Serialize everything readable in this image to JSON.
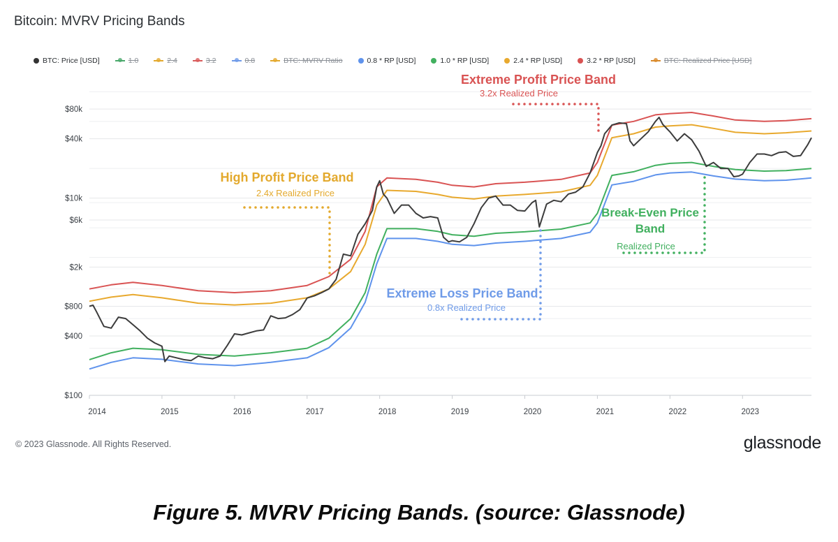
{
  "header": {
    "title": "Bitcoin: MVRV Pricing Bands"
  },
  "legend": [
    {
      "label": "BTC: Price [USD]",
      "color": "#333333",
      "kind": "dot",
      "hidden": false
    },
    {
      "label": "1.0",
      "color": "#4aa96c",
      "kind": "dash",
      "hidden": true
    },
    {
      "label": "2.4",
      "color": "#e3a92d",
      "kind": "dash",
      "hidden": true
    },
    {
      "label": "3.2",
      "color": "#d95b5b",
      "kind": "dash",
      "hidden": true
    },
    {
      "label": "0.8",
      "color": "#6f9be8",
      "kind": "dash",
      "hidden": true
    },
    {
      "label": "BTC: MVRV Ratio",
      "color": "#e3a92d",
      "kind": "dash",
      "hidden": true
    },
    {
      "label": "0.8 * RP [USD]",
      "color": "#5f93ec",
      "kind": "dot",
      "hidden": false
    },
    {
      "label": "1.0 * RP [USD]",
      "color": "#41b05f",
      "kind": "dot",
      "hidden": false
    },
    {
      "label": "2.4 * RP [USD]",
      "color": "#e8a92e",
      "kind": "dot",
      "hidden": false
    },
    {
      "label": "3.2 * RP [USD]",
      "color": "#d95353",
      "kind": "dot",
      "hidden": false
    },
    {
      "label": "BTC: Realized Price [USD]",
      "color": "#d98a2b",
      "kind": "dash",
      "hidden": true
    }
  ],
  "annotations": [
    {
      "id": "extreme-profit",
      "title": "Extreme Profit Price Band",
      "subtitle": "3.2x Realized Price",
      "color": "#d95353"
    },
    {
      "id": "high-profit",
      "title": "High Profit Price Band",
      "subtitle": "2.4x Realized Price",
      "color": "#e3a92d"
    },
    {
      "id": "break-even",
      "title": "Break-Even Price Band",
      "subtitle": "Realized Price",
      "color": "#41b05f"
    },
    {
      "id": "extreme-loss",
      "title": "Extreme Loss Price Band",
      "subtitle": "0.8x Realized Price",
      "color": "#6f9be8"
    }
  ],
  "footer": {
    "copyright": "© 2023 Glassnode. All Rights Reserved.",
    "brand": "glassnode"
  },
  "caption": "Figure 5. MVRV Pricing Bands. (source: Glassnode)",
  "chart_data": {
    "type": "line",
    "title": "Bitcoin: MVRV Pricing Bands",
    "y_scale": "log",
    "ylim": [
      100,
      200000
    ],
    "y_ticks": [
      {
        "value": 100,
        "label": "$100"
      },
      {
        "value": 400,
        "label": "$400"
      },
      {
        "value": 800,
        "label": "$800"
      },
      {
        "value": 2000,
        "label": "$2k"
      },
      {
        "value": 6000,
        "label": "$6k"
      },
      {
        "value": 10000,
        "label": "$10k"
      },
      {
        "value": 40000,
        "label": "$40k"
      },
      {
        "value": 80000,
        "label": "$80k"
      }
    ],
    "x_range": [
      2014.0,
      2023.95
    ],
    "x_ticks": [
      "2014",
      "2015",
      "2016",
      "2017",
      "2018",
      "2019",
      "2020",
      "2021",
      "2022",
      "2023"
    ],
    "grid": true,
    "legend_position": "top",
    "series": [
      {
        "name": "BTC: Price [USD]",
        "color": "#3c3c3c",
        "width": 2,
        "x": [
          2014.0,
          2014.05,
          2014.1,
          2014.2,
          2014.3,
          2014.4,
          2014.5,
          2014.6,
          2014.7,
          2014.8,
          2014.9,
          2015.0,
          2015.04,
          2015.1,
          2015.2,
          2015.3,
          2015.4,
          2015.5,
          2015.6,
          2015.7,
          2015.8,
          2015.9,
          2016.0,
          2016.1,
          2016.2,
          2016.3,
          2016.4,
          2016.5,
          2016.6,
          2016.7,
          2016.8,
          2016.9,
          2017.0,
          2017.1,
          2017.2,
          2017.3,
          2017.4,
          2017.5,
          2017.6,
          2017.7,
          2017.8,
          2017.9,
          2017.96,
          2018.0,
          2018.05,
          2018.1,
          2018.2,
          2018.3,
          2018.4,
          2018.5,
          2018.6,
          2018.7,
          2018.8,
          2018.88,
          2018.95,
          2019.0,
          2019.1,
          2019.2,
          2019.3,
          2019.4,
          2019.5,
          2019.6,
          2019.7,
          2019.8,
          2019.9,
          2020.0,
          2020.1,
          2020.15,
          2020.2,
          2020.3,
          2020.4,
          2020.5,
          2020.6,
          2020.7,
          2020.8,
          2020.9,
          2021.0,
          2021.05,
          2021.1,
          2021.2,
          2021.3,
          2021.4,
          2021.45,
          2021.5,
          2021.6,
          2021.7,
          2021.8,
          2021.85,
          2021.9,
          2022.0,
          2022.1,
          2022.2,
          2022.3,
          2022.4,
          2022.5,
          2022.6,
          2022.7,
          2022.8,
          2022.88,
          2022.95,
          2023.0,
          2023.1,
          2023.2,
          2023.3,
          2023.4,
          2023.5,
          2023.6,
          2023.7,
          2023.8,
          2023.9,
          2023.95
        ],
        "y": [
          800,
          820,
          700,
          500,
          480,
          620,
          600,
          520,
          450,
          380,
          340,
          315,
          220,
          250,
          240,
          230,
          225,
          250,
          240,
          235,
          250,
          320,
          420,
          410,
          430,
          450,
          460,
          640,
          600,
          610,
          660,
          740,
          970,
          1020,
          1100,
          1200,
          1500,
          2700,
          2600,
          4300,
          5500,
          7500,
          13000,
          15000,
          11000,
          10000,
          7000,
          8500,
          8500,
          7000,
          6300,
          6500,
          6300,
          4000,
          3600,
          3700,
          3600,
          4000,
          5500,
          8000,
          10000,
          10500,
          8500,
          8500,
          7500,
          7400,
          9000,
          9500,
          5100,
          8700,
          9500,
          9200,
          11000,
          11500,
          13000,
          18000,
          29000,
          34000,
          45000,
          55000,
          58000,
          57000,
          38000,
          34000,
          40000,
          47000,
          60000,
          66000,
          56000,
          47000,
          38000,
          45000,
          39000,
          30000,
          21000,
          23000,
          20000,
          20000,
          16500,
          16800,
          17500,
          23000,
          28000,
          28000,
          27000,
          29000,
          29500,
          26500,
          27000,
          35000,
          41000
        ]
      },
      {
        "name": "3.2 * RP [USD]",
        "color": "#d95353",
        "width": 2,
        "x": [
          2014.0,
          2014.3,
          2014.6,
          2015.0,
          2015.5,
          2016.0,
          2016.5,
          2017.0,
          2017.3,
          2017.6,
          2017.8,
          2017.96,
          2018.1,
          2018.5,
          2018.8,
          2019.0,
          2019.3,
          2019.6,
          2020.0,
          2020.5,
          2020.9,
          2021.0,
          2021.2,
          2021.5,
          2021.8,
          2022.0,
          2022.3,
          2022.6,
          2022.9,
          2023.3,
          2023.6,
          2023.95
        ],
        "y": [
          1200,
          1320,
          1400,
          1300,
          1150,
          1100,
          1150,
          1300,
          1600,
          2400,
          4600,
          13000,
          16000,
          15500,
          14500,
          13500,
          13000,
          14000,
          14500,
          15500,
          18000,
          23000,
          55000,
          60000,
          70000,
          72000,
          74000,
          68000,
          62000,
          60000,
          61000,
          64000
        ]
      },
      {
        "name": "2.4 * RP [USD]",
        "color": "#e8a92e",
        "width": 2,
        "x": [
          2014.0,
          2014.3,
          2014.6,
          2015.0,
          2015.5,
          2016.0,
          2016.5,
          2017.0,
          2017.3,
          2017.6,
          2017.8,
          2017.96,
          2018.1,
          2018.5,
          2018.8,
          2019.0,
          2019.3,
          2019.6,
          2020.0,
          2020.5,
          2020.9,
          2021.0,
          2021.2,
          2021.5,
          2021.8,
          2022.0,
          2022.3,
          2022.6,
          2022.9,
          2023.3,
          2023.6,
          2023.95
        ],
        "y": [
          900,
          990,
          1050,
          975,
          860,
          825,
          860,
          975,
          1200,
          1800,
          3400,
          8500,
          12000,
          11700,
          10900,
          10200,
          9800,
          10500,
          10900,
          11600,
          13500,
          17000,
          41000,
          45000,
          52500,
          54000,
          55500,
          51000,
          46500,
          45000,
          46000,
          48000
        ]
      },
      {
        "name": "1.0 * RP [USD]",
        "color": "#41b05f",
        "width": 2,
        "x": [
          2014.0,
          2014.3,
          2014.6,
          2015.0,
          2015.5,
          2016.0,
          2016.5,
          2017.0,
          2017.3,
          2017.6,
          2017.8,
          2017.96,
          2018.1,
          2018.5,
          2018.8,
          2019.0,
          2019.3,
          2019.6,
          2020.0,
          2020.5,
          2020.9,
          2021.0,
          2021.2,
          2021.5,
          2021.8,
          2022.0,
          2022.3,
          2022.6,
          2022.9,
          2023.3,
          2023.6,
          2023.95
        ],
        "y": [
          230,
          270,
          300,
          290,
          260,
          250,
          270,
          300,
          380,
          600,
          1100,
          2700,
          4900,
          4900,
          4600,
          4250,
          4100,
          4400,
          4550,
          4850,
          5600,
          7000,
          17000,
          18500,
          21500,
          22500,
          23000,
          21000,
          19500,
          18800,
          19000,
          20000
        ]
      },
      {
        "name": "0.8 * RP [USD]",
        "color": "#5f93ec",
        "width": 2,
        "x": [
          2014.0,
          2014.3,
          2014.6,
          2015.0,
          2015.5,
          2016.0,
          2016.5,
          2017.0,
          2017.3,
          2017.6,
          2017.8,
          2017.96,
          2018.1,
          2018.5,
          2018.8,
          2019.0,
          2019.3,
          2019.6,
          2020.0,
          2020.5,
          2020.9,
          2021.0,
          2021.2,
          2021.5,
          2021.8,
          2022.0,
          2022.3,
          2022.6,
          2022.9,
          2023.3,
          2023.6,
          2023.95
        ],
        "y": [
          185,
          216,
          240,
          232,
          208,
          200,
          216,
          240,
          304,
          480,
          880,
          2160,
          3900,
          3900,
          3650,
          3400,
          3300,
          3500,
          3650,
          3900,
          4500,
          5600,
          13600,
          14800,
          17200,
          18000,
          18400,
          16800,
          15600,
          15000,
          15200,
          16000
        ]
      }
    ]
  }
}
